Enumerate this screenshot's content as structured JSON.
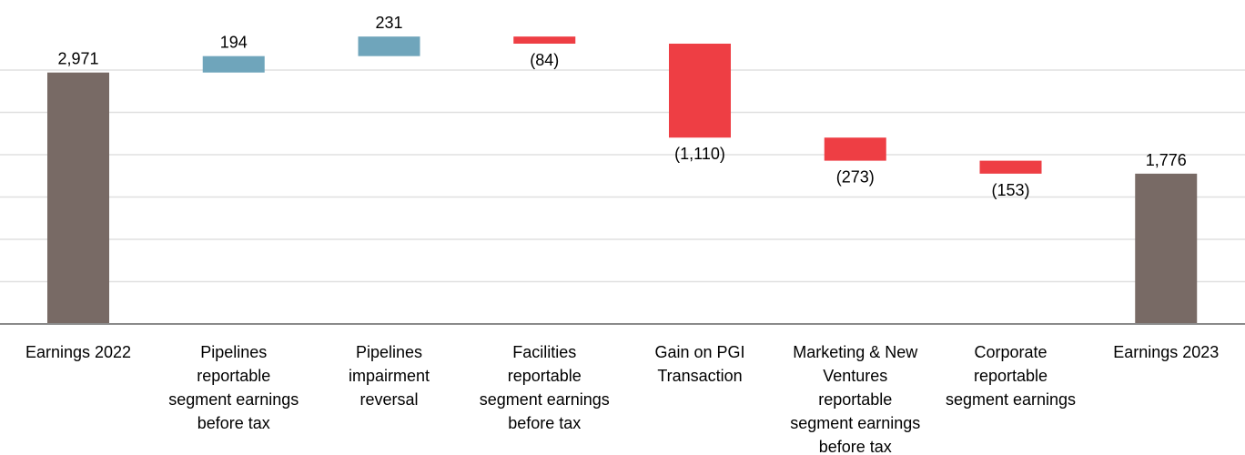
{
  "chart_data": {
    "type": "waterfall",
    "categories": [
      [
        "Earnings 2022"
      ],
      [
        "Pipelines",
        "reportable",
        "segment earnings",
        "before tax"
      ],
      [
        "Pipelines",
        "impairment",
        "reversal"
      ],
      [
        "Facilities",
        "reportable",
        "segment earnings",
        "before tax"
      ],
      [
        "Gain on PGI",
        "Transaction"
      ],
      [
        "Marketing & New",
        "Ventures",
        "reportable",
        "segment earnings",
        "before tax"
      ],
      [
        "Corporate",
        "reportable",
        "segment earnings"
      ],
      [
        "Earnings 2023"
      ]
    ],
    "values": [
      2971,
      194,
      231,
      -84,
      -1110,
      -273,
      -153,
      1776
    ],
    "kinds": [
      "total",
      "delta",
      "delta",
      "delta",
      "delta",
      "delta",
      "delta",
      "total"
    ],
    "value_labels": [
      "2,971",
      "194",
      "231",
      "(84)",
      "(1,110)",
      "(273)",
      "(153)",
      "1,776"
    ],
    "ylim": [
      0,
      3300
    ],
    "grid": true,
    "colors": {
      "total": "#786a65",
      "increase": "#6fa5bb",
      "decrease": "#ee3e44",
      "grid": "#e0e0e0",
      "axis": "#8a8a8a"
    }
  }
}
